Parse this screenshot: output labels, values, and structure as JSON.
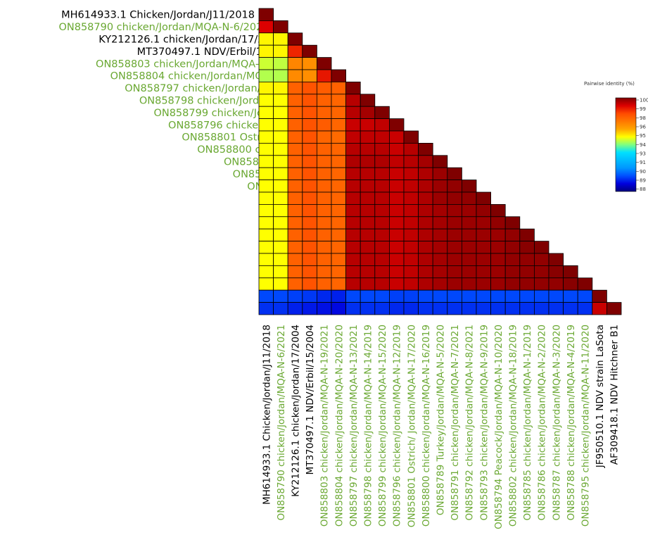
{
  "chart_data": {
    "type": "heatmap",
    "layout": "lower-triangle",
    "legend": {
      "title": "Pairwise identity (%)",
      "position": "right",
      "ticks": [
        100,
        99,
        98,
        96,
        95,
        94,
        93,
        91,
        90,
        89,
        88
      ]
    },
    "colorscale": [
      [
        88,
        "#00007f"
      ],
      [
        89,
        "#0000dd"
      ],
      [
        90,
        "#0050ff"
      ],
      [
        91,
        "#0096ff"
      ],
      [
        93,
        "#00e0ff"
      ],
      [
        94,
        "#7fff80"
      ],
      [
        95,
        "#ffff00"
      ],
      [
        96,
        "#ffa500"
      ],
      [
        98,
        "#ff4a00"
      ],
      [
        99,
        "#dc0000"
      ],
      [
        100,
        "#7f0000"
      ]
    ],
    "labels": [
      {
        "name": "MH614933.1 Chicken/Jordan/J11/2018",
        "highlight": false
      },
      {
        "name": "ON858790 chicken/Jordan/MQA-N-6/2021",
        "highlight": true
      },
      {
        "name": "KY212126.1 chicken/Jordan/17/2004",
        "highlight": false
      },
      {
        "name": "MT370497.1 NDV/Erbil/15/2004",
        "highlight": false
      },
      {
        "name": "ON858803 chicken/Jordan/MQA-N-19/2021",
        "highlight": true
      },
      {
        "name": "ON858804 chicken/Jordan/MQA-N-20/2020",
        "highlight": true
      },
      {
        "name": "ON858797 chicken/Jordan/MQA-N-13/2021",
        "highlight": true
      },
      {
        "name": "ON858798 chicken/Jordan/MQA-N-14/2019",
        "highlight": true
      },
      {
        "name": "ON858799 chicken/Jordan/MQA-N-15/2020",
        "highlight": true
      },
      {
        "name": "ON858796 chicken/Jordan/MQA-N-12/2019",
        "highlight": true
      },
      {
        "name": "ON858801 Ostrich/ Jordan/MQA-N-17/2020",
        "highlight": true
      },
      {
        "name": "ON858800 chicken/Jordan/MQA-N-16/2019",
        "highlight": true
      },
      {
        "name": "ON858789 Turkey/Jordan/MQA-N-5/2020",
        "highlight": true
      },
      {
        "name": "ON858791 chicken/Jordan/MQA-N-7/2021",
        "highlight": true
      },
      {
        "name": "ON858792 chicken/Jordan/MQA-N-8/2021",
        "highlight": true
      },
      {
        "name": "ON858793 chicken/Jordan/MQA-N-9/2019",
        "highlight": true
      },
      {
        "name": "ON858794 Peacock/Jordan/MQA-N-10/2020",
        "highlight": true
      },
      {
        "name": "ON858802 chicken/Jordan/MQA-N-18/2019",
        "highlight": true
      },
      {
        "name": "ON858785 chicken/Jordan/MQA-N-1/2019",
        "highlight": true
      },
      {
        "name": "ON858786 chicken/Jordan/MQA-N-2/2020",
        "highlight": true
      },
      {
        "name": "ON858787 chicken/Jordan/MQA-N-3/2020",
        "highlight": true
      },
      {
        "name": "ON858788 chicken/Jordan/MQA-N-4/2019",
        "highlight": true
      },
      {
        "name": "ON858795 chicken/Jordan/MQA-N-11/2020",
        "highlight": true
      },
      {
        "name": "JF950510.1 NDV strain LaSota",
        "highlight": false
      },
      {
        "name": "AF309418.1 NDV Hitchner B1",
        "highlight": false
      }
    ],
    "colors": {
      "highlight_label": "#6aa832",
      "default_label": "#000000",
      "cell_border": "#000000"
    },
    "values": [
      [
        100
      ],
      [
        99.0,
        100
      ],
      [
        95.1,
        95.1,
        100
      ],
      [
        95.1,
        95.1,
        98.5,
        100
      ],
      [
        94.6,
        94.5,
        96.7,
        96.5,
        100
      ],
      [
        94.4,
        94.4,
        96.6,
        96.5,
        98.7,
        100
      ],
      [
        95.1,
        95.1,
        97.5,
        97.8,
        97.6,
        97.5,
        100
      ],
      [
        95.0,
        95.0,
        97.5,
        97.8,
        97.5,
        97.4,
        99.4,
        100
      ],
      [
        95.0,
        95.0,
        97.5,
        97.8,
        97.5,
        97.4,
        99.4,
        99.6,
        100
      ],
      [
        95.0,
        95.0,
        97.5,
        97.8,
        97.6,
        97.4,
        99.2,
        99.2,
        99.3,
        100
      ],
      [
        95.0,
        95.0,
        97.5,
        97.8,
        97.4,
        97.3,
        99.3,
        99.3,
        99.3,
        99.2,
        100
      ],
      [
        95.0,
        95.0,
        97.5,
        97.8,
        97.5,
        97.4,
        99.4,
        99.4,
        99.4,
        99.2,
        99.4,
        100
      ],
      [
        95.0,
        95.0,
        97.5,
        97.8,
        97.5,
        97.4,
        99.5,
        99.5,
        99.5,
        99.3,
        99.4,
        99.6,
        100
      ],
      [
        95.0,
        95.0,
        97.5,
        97.8,
        97.5,
        97.4,
        99.4,
        99.4,
        99.4,
        99.2,
        99.3,
        99.5,
        99.7,
        100
      ],
      [
        95.0,
        95.0,
        97.5,
        97.8,
        97.5,
        97.4,
        99.4,
        99.4,
        99.4,
        99.2,
        99.3,
        99.5,
        99.7,
        99.8,
        100
      ],
      [
        95.0,
        95.0,
        97.5,
        97.8,
        97.5,
        97.4,
        99.4,
        99.4,
        99.4,
        99.2,
        99.3,
        99.5,
        99.7,
        99.8,
        99.8,
        100
      ],
      [
        95.0,
        95.0,
        97.5,
        97.8,
        97.5,
        97.4,
        99.4,
        99.4,
        99.4,
        99.2,
        99.3,
        99.5,
        99.6,
        99.7,
        99.7,
        99.8,
        100
      ],
      [
        95.0,
        95.0,
        97.5,
        97.8,
        97.5,
        97.4,
        99.4,
        99.4,
        99.4,
        99.2,
        99.3,
        99.5,
        99.6,
        99.7,
        99.7,
        99.7,
        99.8,
        100
      ],
      [
        95.0,
        95.0,
        97.5,
        97.8,
        97.5,
        97.4,
        99.4,
        99.4,
        99.4,
        99.2,
        99.3,
        99.5,
        99.6,
        99.7,
        99.7,
        99.7,
        99.7,
        99.8,
        100
      ],
      [
        95.0,
        95.0,
        97.5,
        97.8,
        97.5,
        97.4,
        99.4,
        99.4,
        99.4,
        99.2,
        99.3,
        99.5,
        99.6,
        99.7,
        99.7,
        99.7,
        99.7,
        99.8,
        99.9,
        100
      ],
      [
        95.0,
        95.0,
        97.5,
        97.8,
        97.5,
        97.4,
        99.4,
        99.4,
        99.4,
        99.2,
        99.3,
        99.5,
        99.6,
        99.7,
        99.7,
        99.7,
        99.7,
        99.8,
        99.8,
        99.8,
        100
      ],
      [
        95.0,
        95.0,
        97.5,
        97.8,
        97.5,
        97.4,
        99.4,
        99.4,
        99.4,
        99.2,
        99.3,
        99.5,
        99.6,
        99.7,
        99.7,
        99.7,
        99.7,
        99.8,
        99.8,
        99.8,
        99.9,
        100
      ],
      [
        95.0,
        95.0,
        97.5,
        97.8,
        97.5,
        97.4,
        99.4,
        99.4,
        99.4,
        99.2,
        99.3,
        99.5,
        99.6,
        99.7,
        99.7,
        99.7,
        99.7,
        99.8,
        99.8,
        99.8,
        99.8,
        99.9,
        100
      ],
      [
        89.9,
        89.9,
        89.8,
        89.7,
        89.5,
        89.4,
        89.9,
        89.9,
        89.9,
        89.8,
        89.8,
        89.9,
        89.9,
        89.9,
        89.9,
        89.9,
        89.9,
        89.9,
        89.9,
        89.9,
        89.9,
        89.9,
        89.9,
        100
      ],
      [
        89.6,
        89.6,
        89.4,
        89.3,
        89.2,
        89.1,
        89.6,
        89.6,
        89.6,
        89.5,
        89.5,
        89.6,
        89.6,
        89.6,
        89.6,
        89.6,
        89.6,
        89.6,
        89.6,
        89.6,
        89.6,
        89.6,
        89.6,
        99.2,
        100
      ]
    ]
  }
}
